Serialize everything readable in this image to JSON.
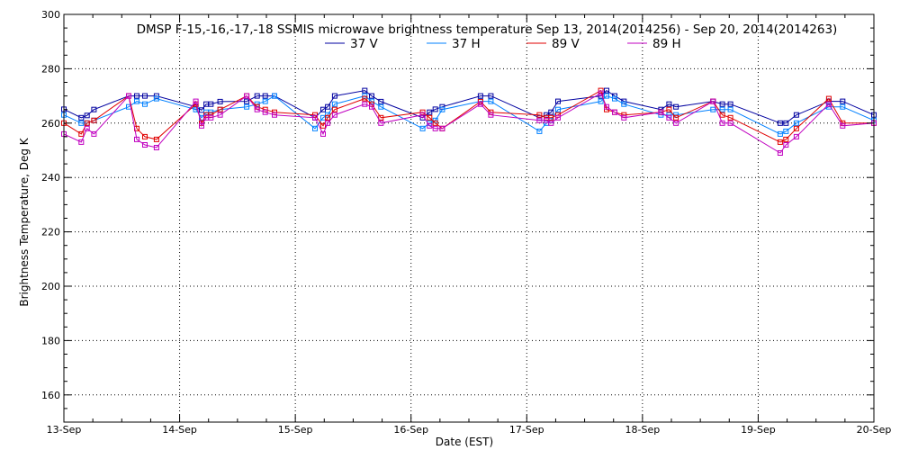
{
  "chart_data": {
    "type": "line",
    "title": "DMSP F-15,-16,-17,-18 SSMIS microwave brightness temperature Sep 13, 2014(2014256) - Sep 20, 2014(2014263)",
    "xlabel": "Date (EST)",
    "ylabel": "Brightness Temperature, Deg K",
    "xlim": [
      0,
      7
    ],
    "ylim": [
      150,
      300
    ],
    "y_ticks": [
      160,
      180,
      200,
      220,
      240,
      260,
      280,
      300
    ],
    "x_ticks": [
      {
        "value": 0,
        "label": "13-Sep"
      },
      {
        "value": 1,
        "label": "14-Sep"
      },
      {
        "value": 2,
        "label": "15-Sep"
      },
      {
        "value": 3,
        "label": "16-Sep"
      },
      {
        "value": 4,
        "label": "17-Sep"
      },
      {
        "value": 5,
        "label": "18-Sep"
      },
      {
        "value": 6,
        "label": "19-Sep"
      },
      {
        "value": 7,
        "label": "20-Sep"
      }
    ],
    "x_unit": "days after 13-Sep",
    "grid": true,
    "legend_position": "top-center",
    "series": [
      {
        "name": "37 V",
        "color": "#0000a0",
        "points": [
          [
            0.0,
            265.1
          ],
          [
            0.15,
            262.0
          ],
          [
            0.2,
            262.8
          ],
          [
            0.26,
            265.0
          ],
          [
            0.56,
            270.0
          ],
          [
            0.63,
            270.0
          ],
          [
            0.7,
            270.0
          ],
          [
            0.8,
            270.0
          ],
          [
            1.14,
            266.0
          ],
          [
            1.19,
            264.8
          ],
          [
            1.23,
            267.0
          ],
          [
            1.27,
            267.0
          ],
          [
            1.35,
            267.9
          ],
          [
            1.58,
            268.0
          ],
          [
            1.67,
            270.0
          ],
          [
            1.74,
            270.0
          ],
          [
            1.82,
            270.0
          ],
          [
            2.17,
            262.0
          ],
          [
            2.24,
            265.0
          ],
          [
            2.28,
            266.0
          ],
          [
            2.34,
            270.0
          ],
          [
            2.6,
            272.0
          ],
          [
            2.66,
            270.0
          ],
          [
            2.74,
            267.9
          ],
          [
            3.1,
            262.0
          ],
          [
            3.16,
            264.0
          ],
          [
            3.21,
            265.1
          ],
          [
            3.27,
            266.0
          ],
          [
            3.6,
            270.0
          ],
          [
            3.69,
            270.0
          ],
          [
            4.11,
            262.0
          ],
          [
            4.17,
            263.0
          ],
          [
            4.21,
            264.0
          ],
          [
            4.27,
            268.0
          ],
          [
            4.64,
            270.0
          ],
          [
            4.69,
            272.0
          ],
          [
            4.76,
            270.0
          ],
          [
            4.84,
            268.0
          ],
          [
            5.16,
            265.0
          ],
          [
            5.23,
            267.0
          ],
          [
            5.29,
            266.0
          ],
          [
            5.61,
            268.0
          ],
          [
            5.69,
            267.0
          ],
          [
            5.76,
            267.0
          ],
          [
            6.19,
            260.0
          ],
          [
            6.24,
            260.0
          ],
          [
            6.33,
            263.0
          ],
          [
            6.61,
            268.0
          ],
          [
            6.73,
            268.0
          ],
          [
            7.0,
            263.0
          ]
        ]
      },
      {
        "name": "37 H",
        "color": "#0080ff",
        "points": [
          [
            0.0,
            263.0
          ],
          [
            0.15,
            260.0
          ],
          [
            0.2,
            260.0
          ],
          [
            0.26,
            261.0
          ],
          [
            0.56,
            266.0
          ],
          [
            0.63,
            268.0
          ],
          [
            0.7,
            267.0
          ],
          [
            0.8,
            269.0
          ],
          [
            1.14,
            265.0
          ],
          [
            1.19,
            262.0
          ],
          [
            1.23,
            264.0
          ],
          [
            1.27,
            264.0
          ],
          [
            1.35,
            265.0
          ],
          [
            1.58,
            266.0
          ],
          [
            1.67,
            267.0
          ],
          [
            1.74,
            268.0
          ],
          [
            1.82,
            270.0
          ],
          [
            2.17,
            258.0
          ],
          [
            2.24,
            262.0
          ],
          [
            2.28,
            263.0
          ],
          [
            2.34,
            267.0
          ],
          [
            2.6,
            270.0
          ],
          [
            2.66,
            268.0
          ],
          [
            2.74,
            266.0
          ],
          [
            3.1,
            258.0
          ],
          [
            3.16,
            260.0
          ],
          [
            3.21,
            261.0
          ],
          [
            3.27,
            265.0
          ],
          [
            3.6,
            268.0
          ],
          [
            3.69,
            268.0
          ],
          [
            4.11,
            257.0
          ],
          [
            4.17,
            260.0
          ],
          [
            4.21,
            261.0
          ],
          [
            4.27,
            265.0
          ],
          [
            4.64,
            268.0
          ],
          [
            4.69,
            270.0
          ],
          [
            4.76,
            269.0
          ],
          [
            4.84,
            267.0
          ],
          [
            5.16,
            263.0
          ],
          [
            5.23,
            263.0
          ],
          [
            5.29,
            263.0
          ],
          [
            5.61,
            265.0
          ],
          [
            5.69,
            265.0
          ],
          [
            5.76,
            265.0
          ],
          [
            6.19,
            256.0
          ],
          [
            6.24,
            257.0
          ],
          [
            6.33,
            260.0
          ],
          [
            6.61,
            266.0
          ],
          [
            6.73,
            266.0
          ],
          [
            7.0,
            261.0
          ]
        ]
      },
      {
        "name": "89 V",
        "color": "#e00000",
        "points": [
          [
            0.0,
            260.0
          ],
          [
            0.15,
            256.0
          ],
          [
            0.2,
            260.0
          ],
          [
            0.26,
            261.0
          ],
          [
            0.56,
            270.0
          ],
          [
            0.63,
            258.0
          ],
          [
            0.7,
            255.0
          ],
          [
            0.8,
            254.0
          ],
          [
            1.14,
            267.0
          ],
          [
            1.19,
            260.0
          ],
          [
            1.23,
            263.0
          ],
          [
            1.27,
            263.0
          ],
          [
            1.35,
            265.0
          ],
          [
            1.58,
            270.0
          ],
          [
            1.67,
            266.0
          ],
          [
            1.74,
            265.0
          ],
          [
            1.82,
            264.0
          ],
          [
            2.17,
            263.0
          ],
          [
            2.24,
            259.0
          ],
          [
            2.28,
            262.0
          ],
          [
            2.34,
            265.0
          ],
          [
            2.6,
            269.0
          ],
          [
            2.66,
            267.0
          ],
          [
            2.74,
            262.0
          ],
          [
            3.1,
            264.0
          ],
          [
            3.16,
            262.0
          ],
          [
            3.21,
            260.0
          ],
          [
            3.27,
            258.0
          ],
          [
            3.6,
            267.9
          ],
          [
            3.69,
            264.0
          ],
          [
            4.11,
            263.0
          ],
          [
            4.17,
            262.0
          ],
          [
            4.21,
            262.0
          ],
          [
            4.27,
            263.0
          ],
          [
            4.64,
            272.0
          ],
          [
            4.69,
            265.0
          ],
          [
            4.76,
            264.0
          ],
          [
            4.84,
            263.0
          ],
          [
            5.16,
            264.0
          ],
          [
            5.23,
            265.0
          ],
          [
            5.29,
            262.0
          ],
          [
            5.61,
            268.0
          ],
          [
            5.69,
            263.0
          ],
          [
            5.76,
            262.0
          ],
          [
            6.19,
            253.0
          ],
          [
            6.24,
            254.0
          ],
          [
            6.33,
            258.0
          ],
          [
            6.61,
            269.0
          ],
          [
            6.73,
            260.0
          ],
          [
            7.0,
            260.0
          ]
        ]
      },
      {
        "name": "89 H",
        "color": "#c000c0",
        "points": [
          [
            0.0,
            256.0
          ],
          [
            0.15,
            253.0
          ],
          [
            0.2,
            258.0
          ],
          [
            0.26,
            256.0
          ],
          [
            0.56,
            270.0
          ],
          [
            0.63,
            254.0
          ],
          [
            0.7,
            252.0
          ],
          [
            0.8,
            251.0
          ],
          [
            1.14,
            268.0
          ],
          [
            1.19,
            259.0
          ],
          [
            1.23,
            262.0
          ],
          [
            1.27,
            262.0
          ],
          [
            1.35,
            263.0
          ],
          [
            1.58,
            270.0
          ],
          [
            1.67,
            265.0
          ],
          [
            1.74,
            264.0
          ],
          [
            1.82,
            263.0
          ],
          [
            2.17,
            262.0
          ],
          [
            2.24,
            256.0
          ],
          [
            2.28,
            260.0
          ],
          [
            2.34,
            263.0
          ],
          [
            2.6,
            267.0
          ],
          [
            2.66,
            266.0
          ],
          [
            2.74,
            260.0
          ],
          [
            3.1,
            263.0
          ],
          [
            3.16,
            259.0
          ],
          [
            3.21,
            258.0
          ],
          [
            3.27,
            258.0
          ],
          [
            3.6,
            267.0
          ],
          [
            3.69,
            263.0
          ],
          [
            4.11,
            261.0
          ],
          [
            4.17,
            261.0
          ],
          [
            4.21,
            260.0
          ],
          [
            4.27,
            262.0
          ],
          [
            4.64,
            271.0
          ],
          [
            4.69,
            266.0
          ],
          [
            4.76,
            264.0
          ],
          [
            4.84,
            262.0
          ],
          [
            5.16,
            264.0
          ],
          [
            5.23,
            262.0
          ],
          [
            5.29,
            260.0
          ],
          [
            5.61,
            268.0
          ],
          [
            5.69,
            260.0
          ],
          [
            5.76,
            260.0
          ],
          [
            6.19,
            249.0
          ],
          [
            6.24,
            252.0
          ],
          [
            6.33,
            255.0
          ],
          [
            6.61,
            267.0
          ],
          [
            6.73,
            259.0
          ],
          [
            7.0,
            260.0
          ]
        ]
      }
    ]
  }
}
